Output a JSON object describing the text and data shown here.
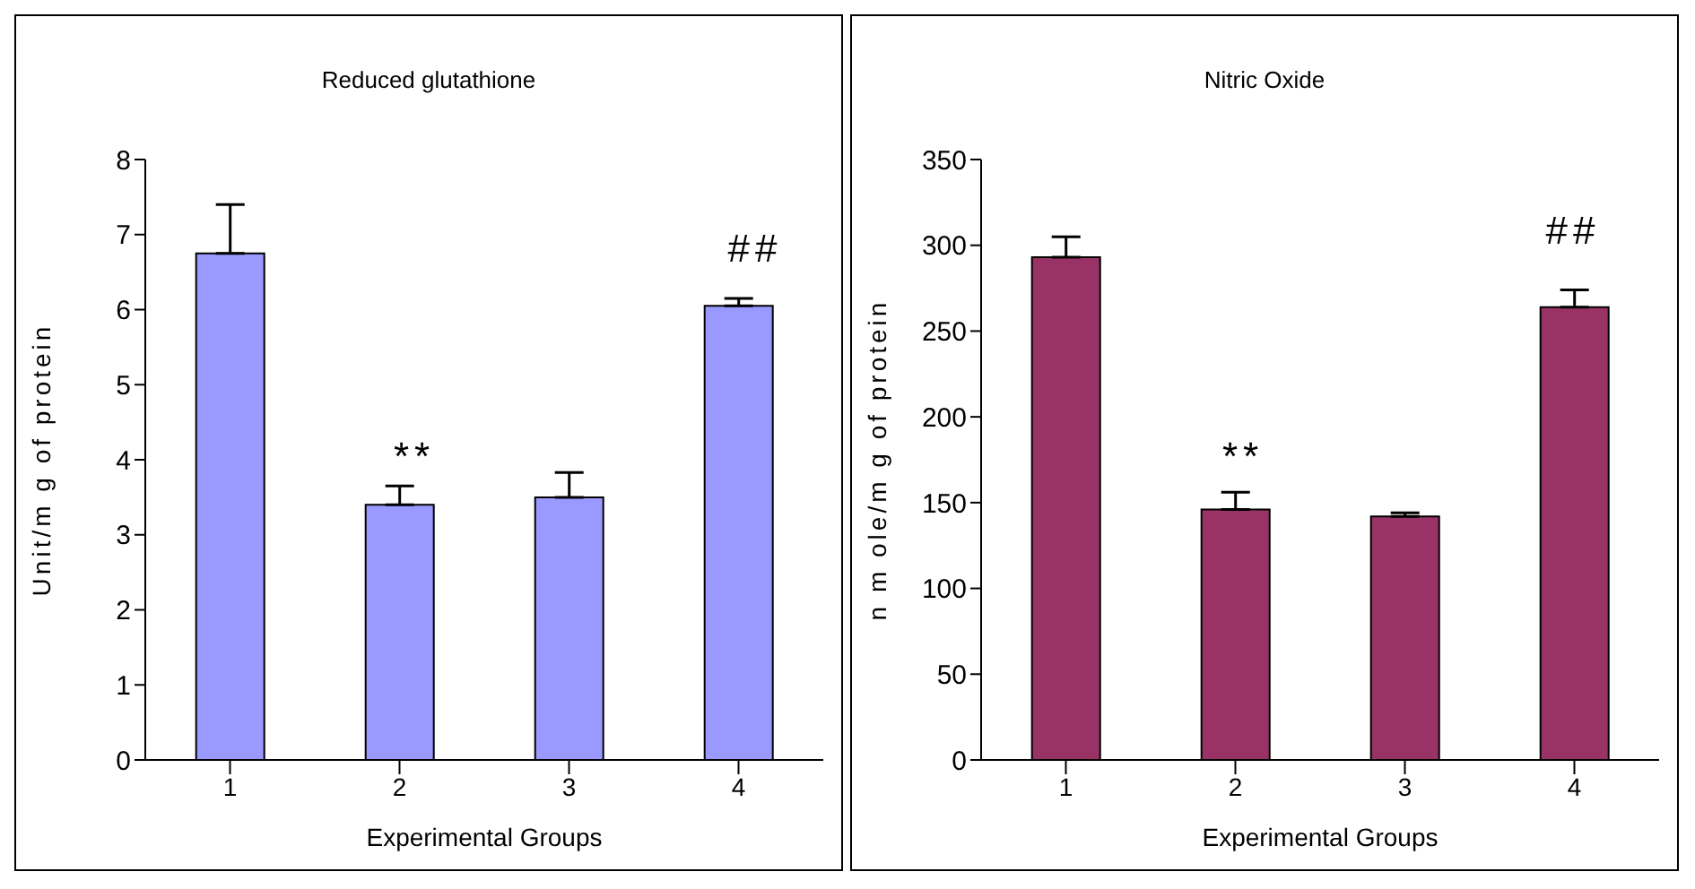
{
  "chart_data": [
    {
      "type": "bar",
      "title": "Reduced glutathione",
      "xlabel": "Experimental Groups",
      "ylabel": "Unit/m g of protein",
      "categories": [
        "1",
        "2",
        "3",
        "4"
      ],
      "values": [
        6.75,
        3.4,
        3.5,
        6.05
      ],
      "errors": [
        [
          6.75,
          7.4
        ],
        [
          3.4,
          3.65
        ],
        [
          3.5,
          3.83
        ],
        [
          6.05,
          6.15
        ]
      ],
      "color": "#9999ff",
      "ylim": [
        0,
        8
      ],
      "yticks": [
        0,
        1,
        2,
        3,
        4,
        5,
        6,
        7,
        8
      ],
      "grid": false,
      "legend": false,
      "annotations": [
        "**",
        "##"
      ]
    },
    {
      "type": "bar",
      "title": "Nitric Oxide",
      "xlabel": "Experimental Groups",
      "ylabel": "n m ole/m g of protein",
      "categories": [
        "1",
        "2",
        "3",
        "4"
      ],
      "values": [
        293,
        146,
        142,
        264
      ],
      "errors": [
        [
          293,
          305
        ],
        [
          146,
          156
        ],
        [
          142,
          144
        ],
        [
          264,
          274
        ]
      ],
      "color": "#993366",
      "ylim": [
        0,
        350
      ],
      "yticks": [
        0,
        50,
        100,
        150,
        200,
        250,
        300,
        350
      ],
      "grid": false,
      "legend": false,
      "annotations": [
        "**",
        "##"
      ]
    }
  ]
}
